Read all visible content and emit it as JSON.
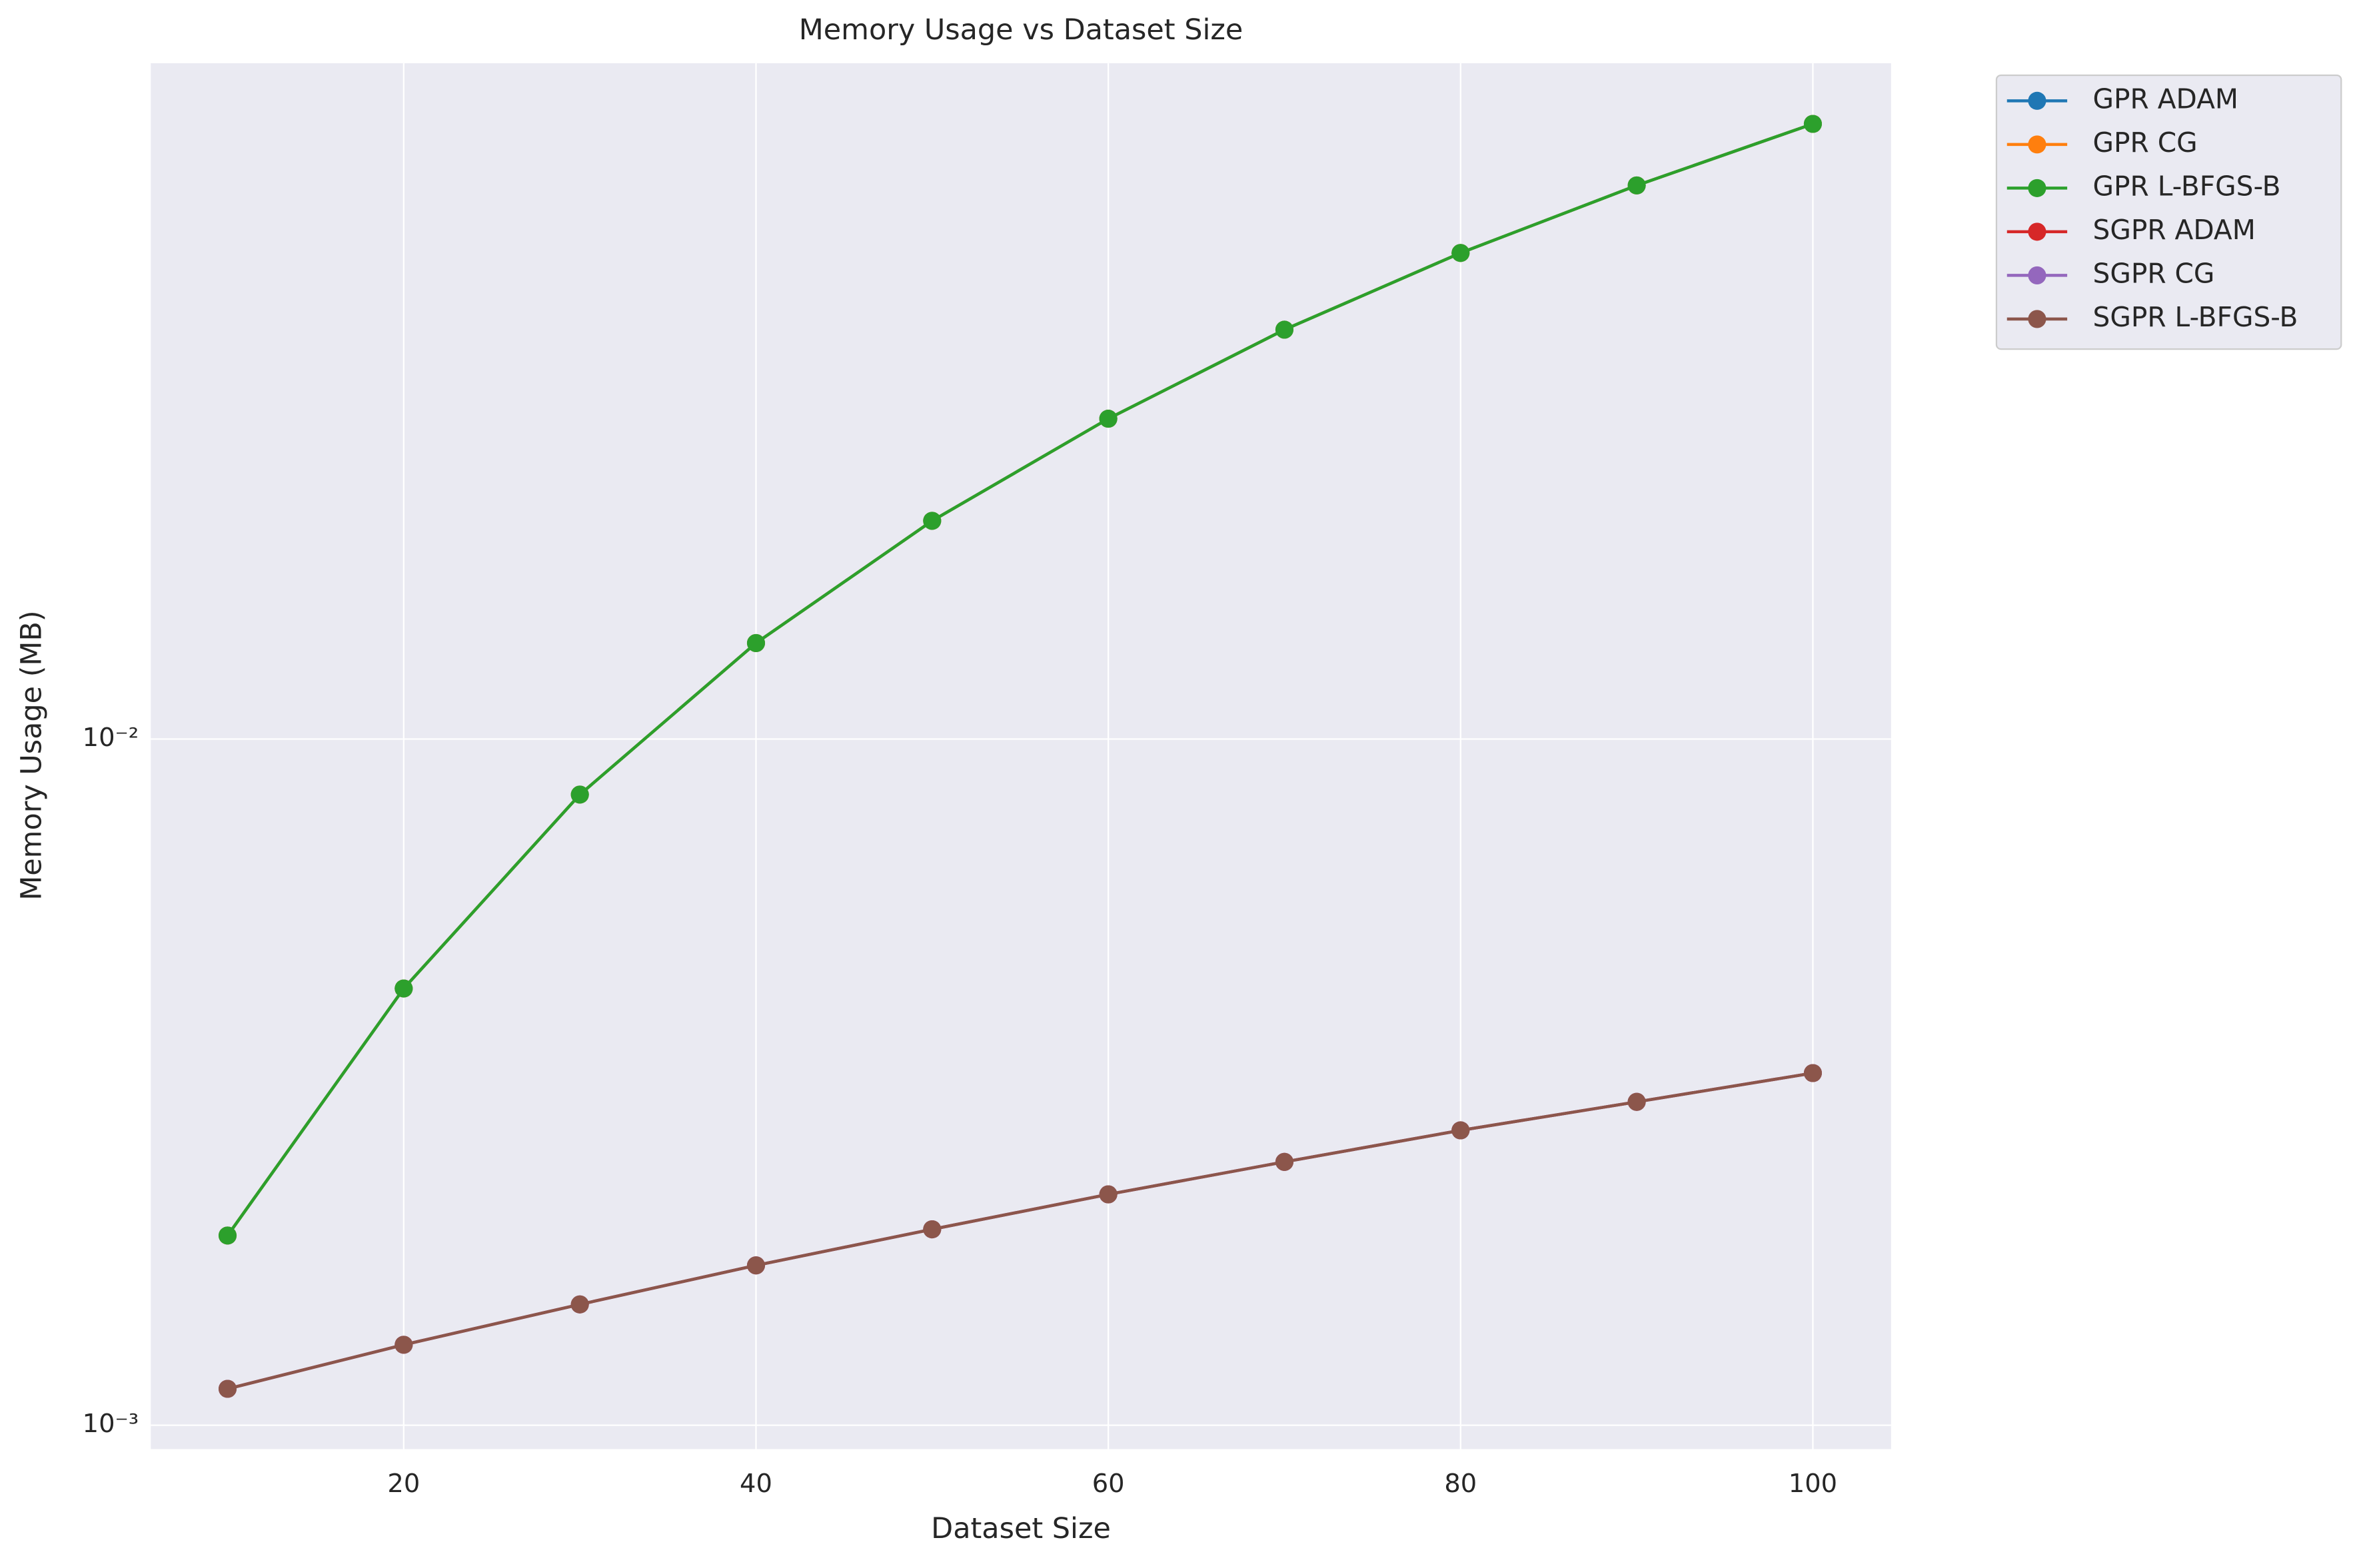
{
  "chart_data": {
    "type": "line",
    "title": "Memory Usage vs Dataset Size",
    "x_label": "Dataset Size",
    "y_label": "Memory Usage (MB)",
    "x": [
      10,
      20,
      30,
      40,
      50,
      60,
      70,
      80,
      90,
      100
    ],
    "series": [
      {
        "name": "GPR ADAM",
        "color": "#1f77b4",
        "values": [
          0.00189,
          0.00433,
          0.0083,
          0.0138,
          0.0208,
          0.0293,
          0.0395,
          0.0511,
          0.0641,
          0.0788
        ]
      },
      {
        "name": "GPR CG",
        "color": "#ff7f0e",
        "values": [
          0.00189,
          0.00433,
          0.0083,
          0.0138,
          0.0208,
          0.0293,
          0.0395,
          0.0511,
          0.0641,
          0.0788
        ]
      },
      {
        "name": "GPR L-BFGS-B",
        "color": "#2ca02c",
        "values": [
          0.00189,
          0.00433,
          0.0083,
          0.0138,
          0.0208,
          0.0293,
          0.0395,
          0.0511,
          0.0641,
          0.0788
        ]
      },
      {
        "name": "SGPR ADAM",
        "color": "#d62728",
        "values": [
          0.00113,
          0.00131,
          0.0015,
          0.00171,
          0.00193,
          0.00217,
          0.00242,
          0.00269,
          0.00296,
          0.00326
        ]
      },
      {
        "name": "SGPR CG",
        "color": "#9467bd",
        "values": [
          0.00113,
          0.00131,
          0.0015,
          0.00171,
          0.00193,
          0.00217,
          0.00242,
          0.00269,
          0.00296,
          0.00326
        ]
      },
      {
        "name": "SGPR L-BFGS-B",
        "color": "#8c564b",
        "values": [
          0.00113,
          0.00131,
          0.0015,
          0.00171,
          0.00193,
          0.00217,
          0.00242,
          0.00269,
          0.00296,
          0.00326
        ]
      }
    ],
    "xlim": [
      5.64,
      104.44
    ],
    "xticks": [
      20,
      40,
      60,
      80,
      100
    ],
    "ylim": [
      0.000923,
      0.0966
    ],
    "yticks": [
      {
        "value": 0.001,
        "label": "10⁻³"
      },
      {
        "value": 0.01,
        "label": "10⁻²"
      }
    ],
    "y_log_scale": true,
    "grid": true,
    "legend_position": "outside-right"
  }
}
